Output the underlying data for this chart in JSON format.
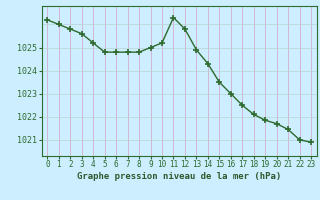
{
  "hours": [
    0,
    1,
    2,
    3,
    4,
    5,
    6,
    7,
    8,
    9,
    10,
    11,
    12,
    13,
    14,
    15,
    16,
    17,
    18,
    19,
    20,
    21,
    22,
    23
  ],
  "pressure": [
    1026.2,
    1026.0,
    1025.8,
    1025.6,
    1025.2,
    1024.8,
    1024.8,
    1024.8,
    1024.8,
    1025.0,
    1025.2,
    1026.3,
    1025.8,
    1024.9,
    1024.3,
    1023.5,
    1023.0,
    1022.5,
    1022.1,
    1021.85,
    1021.7,
    1021.45,
    1021.0,
    1020.9
  ],
  "line_color": "#2d6a2d",
  "marker": "+",
  "marker_size": 4,
  "bg_color": "#cceeff",
  "grid_color_v": "#d4a0c0",
  "grid_color_h": "#b8d4d4",
  "xlabel": "Graphe pression niveau de la mer (hPa)",
  "xlabel_color": "#2d5a2d",
  "ylabel_ticks": [
    1021,
    1022,
    1023,
    1024,
    1025
  ],
  "ylim": [
    1020.3,
    1026.8
  ],
  "xlim": [
    -0.5,
    23.5
  ],
  "tick_color": "#2d6a2d",
  "spine_color": "#2d6a2d",
  "tick_fontsize": 5.5,
  "xlabel_fontsize": 6.5
}
